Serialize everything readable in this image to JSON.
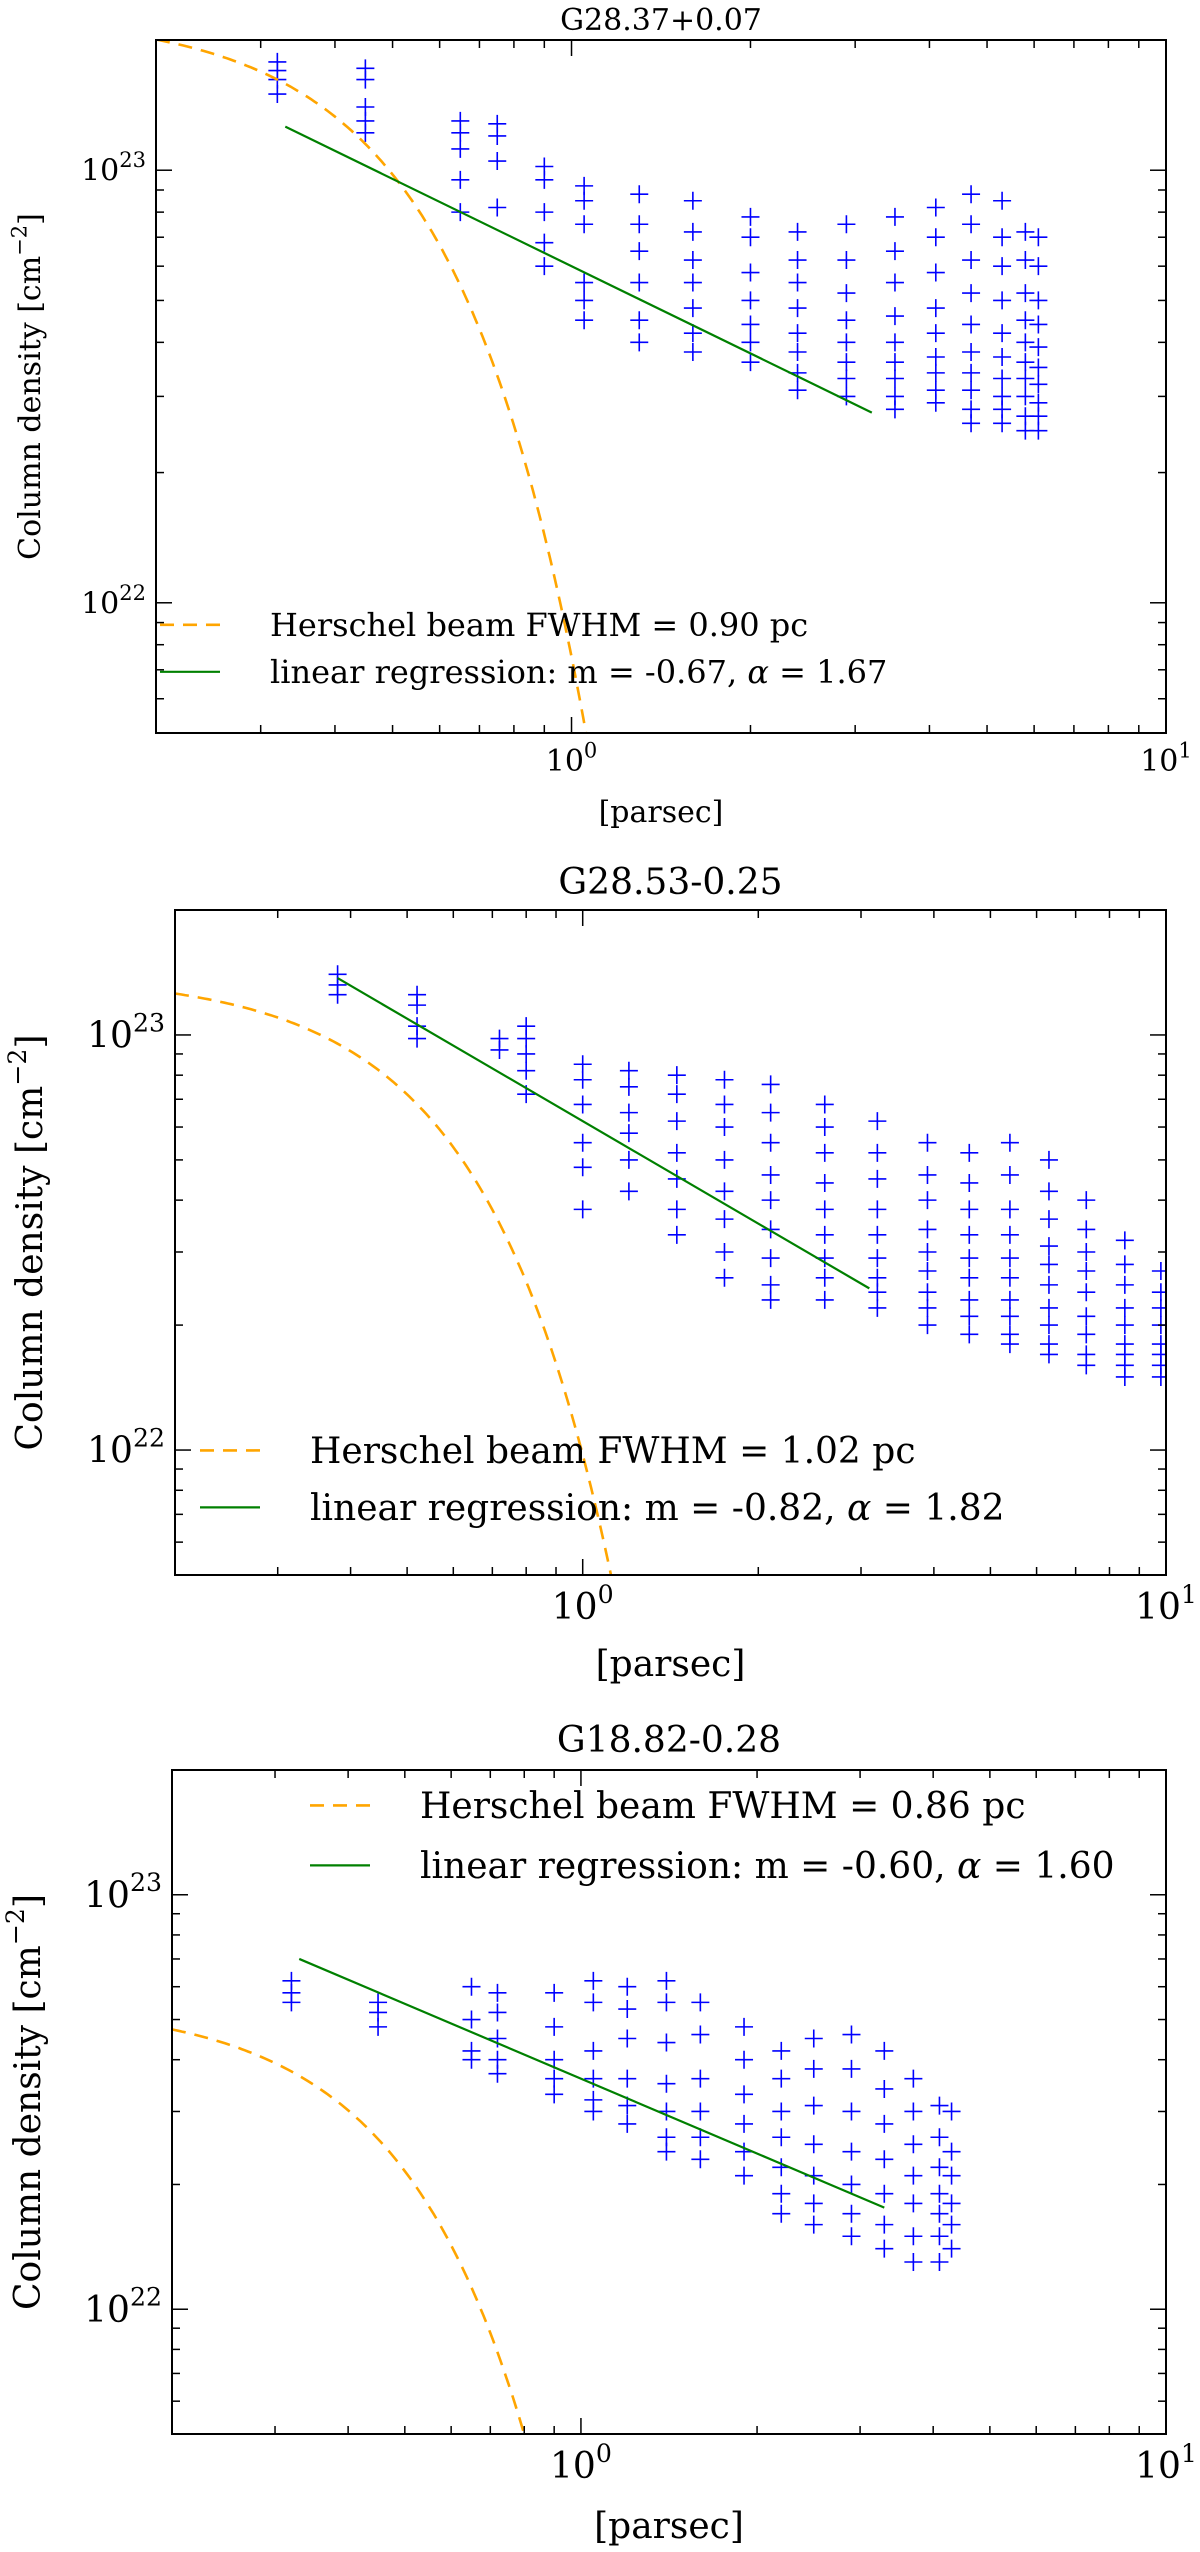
{
  "chart_data": [
    {
      "type": "scatter",
      "title": "G28.37+0.07",
      "xlabel": "[parsec]",
      "ylabel": "Column density [cm",
      "ylabel_sup": "−2",
      "ylabel_close": "]",
      "xscale": "log",
      "yscale": "log",
      "xlim": [
        0.2,
        10
      ],
      "ylim": [
        5e+21,
        2e+23
      ],
      "x_ticks": [
        {
          "value": 1,
          "base": "10",
          "exp": "0"
        },
        {
          "value": 10,
          "base": "10",
          "exp": "1"
        }
      ],
      "y_ticks": [
        {
          "value": 1e+22,
          "base": "10",
          "exp": "22"
        },
        {
          "value": 1e+23,
          "base": "10",
          "exp": "23"
        }
      ],
      "legend_position": "lower-left",
      "grid": false,
      "beam": {
        "label": "Herschel beam FWHM = 0.90 pc",
        "fwhm": 0.9,
        "peak": 2.3e+23,
        "color": "#FFA500"
      },
      "regression": {
        "label_prefix": "linear regression: m = -0.67, ",
        "alpha_symbol": "α",
        "label_suffix": " = 1.67",
        "m": -0.67,
        "alpha": 1.67,
        "x_start": 0.33,
        "x_end": 3.2,
        "y_at_1": 6e+22,
        "color": "#008000"
      },
      "scatter": {
        "color": "#0000FF",
        "groups": [
          {
            "x": 0.32,
            "y": [
              1.78e+23,
              1.7e+23,
              1.62e+23,
              1.5e+23
            ]
          },
          {
            "x": 0.45,
            "y": [
              1.72e+23,
              1.62e+23,
              1.4e+23,
              1.3e+23,
              1.22e+23
            ]
          },
          {
            "x": 0.65,
            "y": [
              1.3e+23,
              1.22e+23,
              1.12e+23,
              9.5e+22,
              8e+22
            ]
          },
          {
            "x": 0.75,
            "y": [
              1.28e+23,
              1.2e+23,
              1.05e+23,
              8.2e+22
            ]
          },
          {
            "x": 0.9,
            "y": [
              1.02e+23,
              9.5e+22,
              8e+22,
              6.8e+22,
              6e+22
            ]
          },
          {
            "x": 1.05,
            "y": [
              9.2e+22,
              8.5e+22,
              7.5e+22,
              5.5e+22,
              5e+22,
              4.5e+22
            ]
          },
          {
            "x": 1.3,
            "y": [
              8.8e+22,
              7.5e+22,
              6.5e+22,
              5.5e+22,
              4.5e+22,
              4e+22
            ]
          },
          {
            "x": 1.6,
            "y": [
              8.5e+22,
              7.2e+22,
              6.2e+22,
              5.5e+22,
              4.8e+22,
              4.2e+22,
              3.8e+22
            ]
          },
          {
            "x": 2.0,
            "y": [
              7.8e+22,
              7e+22,
              5.8e+22,
              5e+22,
              4.4e+22,
              4e+22,
              3.6e+22
            ]
          },
          {
            "x": 2.4,
            "y": [
              7.2e+22,
              6.2e+22,
              5.5e+22,
              4.8e+22,
              4.2e+22,
              3.8e+22,
              3.4e+22,
              3.1e+22
            ]
          },
          {
            "x": 2.9,
            "y": [
              7.5e+22,
              6.2e+22,
              5.2e+22,
              4.5e+22,
              4e+22,
              3.6e+22,
              3.3e+22,
              3e+22
            ]
          },
          {
            "x": 3.5,
            "y": [
              7.8e+22,
              6.5e+22,
              5.5e+22,
              4.6e+22,
              4e+22,
              3.6e+22,
              3.3e+22,
              3e+22,
              2.8e+22
            ]
          },
          {
            "x": 4.1,
            "y": [
              8.2e+22,
              7e+22,
              5.8e+22,
              4.8e+22,
              4.2e+22,
              3.7e+22,
              3.4e+22,
              3.1e+22,
              2.9e+22
            ]
          },
          {
            "x": 4.7,
            "y": [
              8.8e+22,
              7.5e+22,
              6.2e+22,
              5.2e+22,
              4.4e+22,
              3.8e+22,
              3.4e+22,
              3.1e+22,
              2.8e+22,
              2.6e+22
            ]
          },
          {
            "x": 5.3,
            "y": [
              8.5e+22,
              7e+22,
              6e+22,
              5e+22,
              4.2e+22,
              3.7e+22,
              3.3e+22,
              3e+22,
              2.8e+22,
              2.6e+22
            ]
          },
          {
            "x": 5.8,
            "y": [
              7.2e+22,
              6.2e+22,
              5.2e+22,
              4.5e+22,
              4e+22,
              3.6e+22,
              3.3e+22,
              3e+22,
              2.7e+22,
              2.5e+22
            ]
          },
          {
            "x": 6.1,
            "y": [
              7e+22,
              6e+22,
              5e+22,
              4.4e+22,
              3.9e+22,
              3.5e+22,
              3.2e+22,
              2.9e+22,
              2.7e+22,
              2.5e+22
            ]
          }
        ]
      }
    },
    {
      "type": "scatter",
      "title": "G28.53-0.25",
      "xlabel": "[parsec]",
      "ylabel": "Column density [cm",
      "ylabel_sup": "−2",
      "ylabel_close": "]",
      "xscale": "log",
      "yscale": "log",
      "xlim": [
        0.2,
        10
      ],
      "ylim": [
        5e+21,
        2e+23
      ],
      "x_ticks": [
        {
          "value": 1,
          "base": "10",
          "exp": "0"
        },
        {
          "value": 10,
          "base": "10",
          "exp": "1"
        }
      ],
      "y_ticks": [
        {
          "value": 1e+22,
          "base": "10",
          "exp": "22"
        },
        {
          "value": 1e+23,
          "base": "10",
          "exp": "23"
        }
      ],
      "legend_position": "lower-left",
      "grid": false,
      "beam": {
        "label": "Herschel beam FWHM = 1.02 pc",
        "fwhm": 1.02,
        "peak": 1.4e+23,
        "color": "#FFA500"
      },
      "regression": {
        "label_prefix": "linear regression: m = -0.82, ",
        "alpha_symbol": "α",
        "label_suffix": " = 1.82",
        "m": -0.82,
        "alpha": 1.82,
        "x_start": 0.38,
        "x_end": 3.1,
        "y_at_1": 6.2e+22,
        "color": "#008000"
      },
      "scatter": {
        "color": "#0000FF",
        "groups": [
          {
            "x": 0.38,
            "y": [
              1.4e+23,
              1.32e+23,
              1.25e+23
            ]
          },
          {
            "x": 0.52,
            "y": [
              1.25e+23,
              1.18e+23,
              1.05e+23,
              9.8e+22
            ]
          },
          {
            "x": 0.72,
            "y": [
              9.8e+22,
              9.2e+22
            ]
          },
          {
            "x": 0.8,
            "y": [
              1.05e+23,
              9.8e+22,
              9e+22,
              8.2e+22,
              7.2e+22
            ]
          },
          {
            "x": 1.0,
            "y": [
              8.5e+22,
              7.8e+22,
              6.8e+22,
              5.5e+22,
              4.8e+22,
              3.8e+22
            ]
          },
          {
            "x": 1.2,
            "y": [
              8.2e+22,
              7.5e+22,
              6.5e+22,
              5.8e+22,
              5e+22,
              4.2e+22
            ]
          },
          {
            "x": 1.45,
            "y": [
              8e+22,
              7.2e+22,
              6.2e+22,
              5.2e+22,
              4.5e+22,
              3.8e+22,
              3.3e+22
            ]
          },
          {
            "x": 1.75,
            "y": [
              7.8e+22,
              6.8e+22,
              6e+22,
              5e+22,
              4.2e+22,
              3.6e+22,
              3e+22,
              2.6e+22
            ]
          },
          {
            "x": 2.1,
            "y": [
              7.6e+22,
              6.5e+22,
              5.5e+22,
              4.6e+22,
              4e+22,
              3.4e+22,
              2.9e+22,
              2.5e+22,
              2.3e+22
            ]
          },
          {
            "x": 2.6,
            "y": [
              6.8e+22,
              6e+22,
              5.2e+22,
              4.4e+22,
              3.8e+22,
              3.3e+22,
              2.9e+22,
              2.6e+22,
              2.3e+22
            ]
          },
          {
            "x": 3.2,
            "y": [
              6.2e+22,
              5.2e+22,
              4.5e+22,
              3.8e+22,
              3.3e+22,
              2.9e+22,
              2.6e+22,
              2.4e+22,
              2.2e+22
            ]
          },
          {
            "x": 3.9,
            "y": [
              5.5e+22,
              4.6e+22,
              4e+22,
              3.4e+22,
              3e+22,
              2.7e+22,
              2.4e+22,
              2.2e+22,
              2e+22
            ]
          },
          {
            "x": 4.6,
            "y": [
              5.2e+22,
              4.4e+22,
              3.8e+22,
              3.3e+22,
              2.9e+22,
              2.6e+22,
              2.3e+22,
              2.1e+22,
              1.9e+22
            ]
          },
          {
            "x": 5.4,
            "y": [
              5.5e+22,
              4.6e+22,
              3.8e+22,
              3.3e+22,
              2.9e+22,
              2.6e+22,
              2.3e+22,
              2.1e+22,
              1.9e+22,
              1.8e+22
            ]
          },
          {
            "x": 6.3,
            "y": [
              5e+22,
              4.2e+22,
              3.6e+22,
              3.1e+22,
              2.8e+22,
              2.5e+22,
              2.2e+22,
              2e+22,
              1.8e+22,
              1.7e+22
            ]
          },
          {
            "x": 7.3,
            "y": [
              4e+22,
              3.4e+22,
              3e+22,
              2.7e+22,
              2.4e+22,
              2.1e+22,
              1.9e+22,
              1.7e+22,
              1.6e+22
            ]
          },
          {
            "x": 8.5,
            "y": [
              3.2e+22,
              2.8e+22,
              2.5e+22,
              2.2e+22,
              2e+22,
              1.8e+22,
              1.7e+22,
              1.6e+22,
              1.5e+22
            ]
          },
          {
            "x": 9.8,
            "y": [
              2.7e+22,
              2.4e+22,
              2.2e+22,
              2e+22,
              1.8e+22,
              1.7e+22,
              1.6e+22,
              1.5e+22
            ]
          }
        ]
      }
    },
    {
      "type": "scatter",
      "title": "G18.82-0.28",
      "xlabel": "[parsec]",
      "ylabel": "Column density [cm",
      "ylabel_sup": "−2",
      "ylabel_close": "]",
      "xscale": "log",
      "yscale": "log",
      "xlim": [
        0.2,
        10
      ],
      "ylim": [
        5e+21,
        2e+23
      ],
      "x_ticks": [
        {
          "value": 1,
          "base": "10",
          "exp": "0"
        },
        {
          "value": 10,
          "base": "10",
          "exp": "1"
        }
      ],
      "y_ticks": [
        {
          "value": 1e+22,
          "base": "10",
          "exp": "22"
        },
        {
          "value": 1e+23,
          "base": "10",
          "exp": "23"
        }
      ],
      "legend_position": "upper-center",
      "grid": false,
      "beam": {
        "label": "Herschel beam FWHM = 0.86 pc",
        "fwhm": 0.86,
        "peak": 5.5e+22,
        "color": "#FFA500"
      },
      "regression": {
        "label_prefix": "linear regression: m = -0.60, ",
        "alpha_symbol": "α",
        "label_suffix": " = 1.60",
        "m": -0.6,
        "alpha": 1.6,
        "x_start": 0.33,
        "x_end": 3.3,
        "y_at_1": 3.6e+22,
        "color": "#008000"
      },
      "scatter": {
        "color": "#0000FF",
        "groups": [
          {
            "x": 0.32,
            "y": [
              6.2e+22,
              5.8e+22,
              5.5e+22
            ]
          },
          {
            "x": 0.45,
            "y": [
              5.5e+22,
              5.2e+22,
              4.8e+22
            ]
          },
          {
            "x": 0.65,
            "y": [
              6e+22,
              5e+22,
              4.2e+22,
              4e+22
            ]
          },
          {
            "x": 0.72,
            "y": [
              5.8e+22,
              5.2e+22,
              4.5e+22,
              4e+22,
              3.7e+22
            ]
          },
          {
            "x": 0.9,
            "y": [
              5.8e+22,
              4.8e+22,
              4e+22,
              3.6e+22,
              3.3e+22
            ]
          },
          {
            "x": 1.05,
            "y": [
              6.2e+22,
              5.5e+22,
              4.2e+22,
              3.6e+22,
              3.2e+22,
              3e+22
            ]
          },
          {
            "x": 1.2,
            "y": [
              6e+22,
              5.3e+22,
              4.5e+22,
              3.6e+22,
              3.1e+22,
              2.8e+22
            ]
          },
          {
            "x": 1.4,
            "y": [
              6.2e+22,
              5.5e+22,
              4.4e+22,
              3.5e+22,
              3e+22,
              2.6e+22,
              2.4e+22
            ]
          },
          {
            "x": 1.6,
            "y": [
              5.5e+22,
              4.6e+22,
              3.6e+22,
              3e+22,
              2.6e+22,
              2.3e+22
            ]
          },
          {
            "x": 1.9,
            "y": [
              4.8e+22,
              4e+22,
              3.3e+22,
              2.8e+22,
              2.4e+22,
              2.1e+22
            ]
          },
          {
            "x": 2.2,
            "y": [
              4.2e+22,
              3.6e+22,
              3e+22,
              2.6e+22,
              2.2e+22,
              1.9e+22,
              1.7e+22
            ]
          },
          {
            "x": 2.5,
            "y": [
              4.5e+22,
              3.8e+22,
              3.1e+22,
              2.5e+22,
              2.1e+22,
              1.8e+22,
              1.6e+22
            ]
          },
          {
            "x": 2.9,
            "y": [
              4.6e+22,
              3.8e+22,
              3e+22,
              2.4e+22,
              2e+22,
              1.7e+22,
              1.5e+22
            ]
          },
          {
            "x": 3.3,
            "y": [
              4.2e+22,
              3.4e+22,
              2.8e+22,
              2.3e+22,
              1.9e+22,
              1.6e+22,
              1.4e+22
            ]
          },
          {
            "x": 3.7,
            "y": [
              3.6e+22,
              3e+22,
              2.5e+22,
              2.1e+22,
              1.8e+22,
              1.5e+22,
              1.3e+22
            ]
          },
          {
            "x": 4.1,
            "y": [
              3.1e+22,
              2.6e+22,
              2.2e+22,
              1.9e+22,
              1.7e+22,
              1.5e+22,
              1.3e+22
            ]
          },
          {
            "x": 4.3,
            "y": [
              3e+22,
              2.4e+22,
              2.1e+22,
              1.8e+22,
              1.6e+22,
              1.4e+22
            ]
          }
        ]
      }
    }
  ]
}
